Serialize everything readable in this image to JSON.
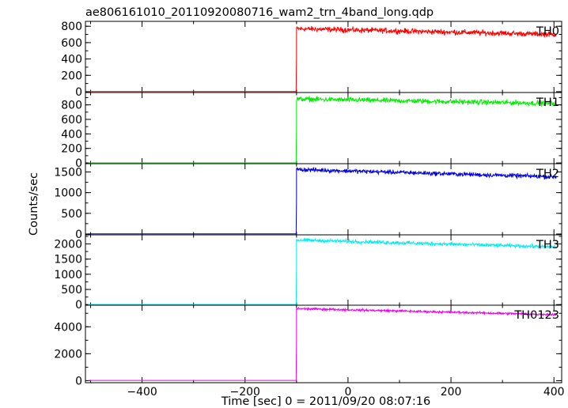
{
  "chart_data": {
    "type": "line",
    "title": "ae806161010_20110920080716_wam2_trn_4band_long.qdp",
    "xlabel": "Time [sec] 0 = 2011/09/20 08:07:16",
    "ylabel": "Counts/sec",
    "xlim": [
      -510,
      415
    ],
    "x_ticks": [
      -400,
      -200,
      0,
      200,
      400
    ],
    "x_tick_labels": [
      "−400",
      "−200",
      "0",
      "200",
      "400"
    ],
    "grid": false,
    "panels": [
      {
        "name": "TH0",
        "color": "#ff0000",
        "ylim": [
          -10,
          860
        ],
        "y_ticks": [
          0,
          200,
          400,
          600,
          800
        ],
        "y_tick_labels": [
          "0",
          "200",
          "400",
          "600",
          "800"
        ],
        "pre_level": 2,
        "onset": -100,
        "peak": 770,
        "end_level": 700,
        "noise": 28
      },
      {
        "name": "TH1",
        "color": "#00ee00",
        "ylim": [
          -10,
          970
        ],
        "y_ticks": [
          0,
          200,
          400,
          600,
          800
        ],
        "y_tick_labels": [
          "0",
          "200",
          "400",
          "600",
          "800"
        ],
        "pre_level": 2,
        "onset": -100,
        "peak": 880,
        "end_level": 820,
        "noise": 30
      },
      {
        "name": "TH2",
        "color": "#0000dd",
        "ylim": [
          -20,
          1700
        ],
        "y_ticks": [
          0,
          500,
          1000,
          1500
        ],
        "y_tick_labels": [
          "0",
          "500",
          "1000",
          "1500"
        ],
        "pre_level": 5,
        "onset": -100,
        "peak": 1560,
        "end_level": 1380,
        "noise": 45
      },
      {
        "name": "TH3",
        "color": "#00eeee",
        "ylim": [
          -20,
          2300
        ],
        "y_ticks": [
          0,
          500,
          1000,
          1500,
          2000
        ],
        "y_tick_labels": [
          "0",
          "500",
          "1000",
          "1500",
          "2000"
        ],
        "pre_level": 5,
        "onset": -100,
        "peak": 2130,
        "end_level": 1900,
        "noise": 50
      },
      {
        "name": "TH0123",
        "color": "#ee00ee",
        "ylim": [
          -150,
          5600
        ],
        "y_ticks": [
          0,
          2000,
          4000
        ],
        "y_tick_labels": [
          "0",
          "2000",
          "4000"
        ],
        "pre_level": 20,
        "onset": -100,
        "peak": 5350,
        "end_level": 4900,
        "noise": 70
      }
    ]
  }
}
